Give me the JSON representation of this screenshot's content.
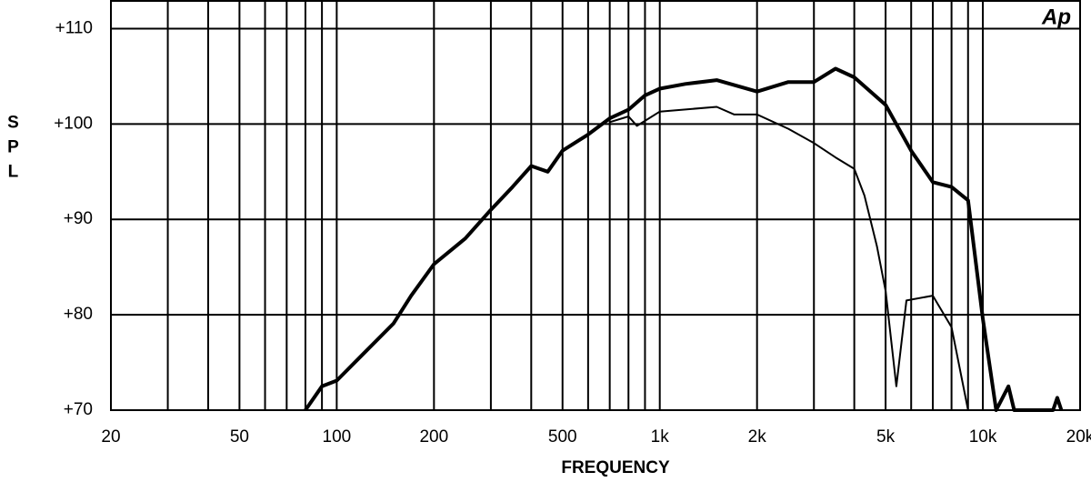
{
  "chart_data": {
    "type": "line",
    "logo": "Ap",
    "y_label": "SPL",
    "x_label": "FREQUENCY",
    "xlog": true,
    "grid": true,
    "xlim": [
      20,
      20000
    ],
    "ylim": [
      70,
      113
    ],
    "xticks": [
      20,
      50,
      100,
      200,
      500,
      {
        "value": 1000,
        "label": "1k"
      },
      {
        "value": 2000,
        "label": "2k"
      },
      {
        "value": 5000,
        "label": "5k"
      },
      {
        "value": 10000,
        "label": "10k"
      },
      {
        "value": 20000,
        "label": "20k"
      }
    ],
    "xminor_ticks": [
      30,
      40,
      60,
      70,
      80,
      90,
      300,
      400,
      600,
      700,
      800,
      900,
      3000,
      4000,
      6000,
      7000,
      8000,
      9000
    ],
    "yticks": [
      {
        "value": 70,
        "label": "+70"
      },
      {
        "value": 80,
        "label": "+80"
      },
      {
        "value": 90,
        "label": "+90"
      },
      {
        "value": 100,
        "label": "+100"
      },
      {
        "value": 110,
        "label": "+110"
      }
    ],
    "series": [
      {
        "color": "#000000",
        "width": 4,
        "x": [
          80,
          90,
          100,
          120,
          150,
          170,
          200,
          250,
          300,
          350,
          400,
          450,
          500,
          600,
          700,
          800,
          900,
          1000,
          1200,
          1500,
          2000,
          2500,
          3000,
          3500,
          4000,
          5000,
          6000,
          7000,
          8000,
          9000,
          10000,
          11000,
          12000,
          12500,
          16500,
          17000,
          17500
        ],
        "values": [
          70,
          72.5,
          73.1,
          75.8,
          79.1,
          82,
          85.3,
          88,
          91,
          93.4,
          95.6,
          95,
          97.2,
          98.9,
          100.6,
          101.5,
          103,
          103.7,
          104.2,
          104.6,
          103.4,
          104.4,
          104.4,
          105.8,
          104.9,
          102,
          97.2,
          93.9,
          93.4,
          92,
          79.6,
          70,
          72.5,
          70,
          70,
          71.3,
          70
        ]
      },
      {
        "color": "#000000",
        "width": 2,
        "x": [
          700,
          800,
          850,
          1000,
          1500,
          1700,
          2000,
          2500,
          3000,
          3500,
          4000,
          4300,
          4700,
          5000,
          5400,
          5800,
          7000,
          8000,
          9000
        ],
        "values": [
          100.2,
          100.8,
          99.8,
          101.3,
          101.8,
          101,
          101,
          99.5,
          98,
          96.5,
          95.3,
          92.5,
          87.2,
          82.5,
          72.5,
          81.5,
          82,
          78.7,
          70
        ]
      }
    ]
  }
}
